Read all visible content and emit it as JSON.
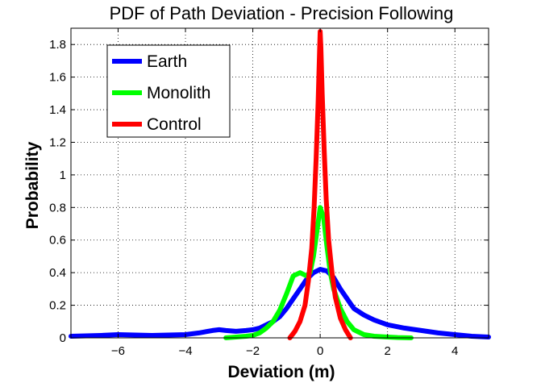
{
  "chart_data": {
    "type": "line",
    "title": "PDF of Path Deviation - Precision Following",
    "xlabel": "Deviation (m)",
    "ylabel": "Probability",
    "xlim": [
      -7.4,
      5.0
    ],
    "ylim": [
      0,
      1.9
    ],
    "xticks": [
      -6,
      -4,
      -2,
      0,
      2,
      4
    ],
    "xtick_labels": [
      "−6",
      "−4",
      "−2",
      "0",
      "2",
      "4"
    ],
    "yticks": [
      0,
      0.2,
      0.4,
      0.6,
      0.8,
      1.0,
      1.2,
      1.4,
      1.6,
      1.8
    ],
    "ytick_labels": [
      "0",
      "0.2",
      "0.4",
      "0.6",
      "0.8",
      "1",
      "1.2",
      "1.4",
      "1.6",
      "1.8"
    ],
    "grid": true,
    "legend_position": "top-left",
    "series": [
      {
        "name": "Earth",
        "color": "#0000ff",
        "x": [
          -7.4,
          -6.5,
          -6.0,
          -5.0,
          -4.0,
          -3.6,
          -3.2,
          -3.0,
          -2.8,
          -2.5,
          -2.2,
          -2.0,
          -1.8,
          -1.6,
          -1.4,
          -1.2,
          -1.0,
          -0.8,
          -0.6,
          -0.4,
          -0.2,
          0.0,
          0.2,
          0.4,
          0.6,
          0.8,
          1.0,
          1.3,
          1.6,
          2.0,
          2.5,
          3.0,
          3.5,
          4.0,
          4.5,
          5.0
        ],
        "y": [
          0.01,
          0.015,
          0.02,
          0.015,
          0.02,
          0.03,
          0.045,
          0.05,
          0.045,
          0.04,
          0.045,
          0.05,
          0.06,
          0.08,
          0.1,
          0.13,
          0.18,
          0.24,
          0.3,
          0.36,
          0.4,
          0.42,
          0.41,
          0.37,
          0.3,
          0.24,
          0.18,
          0.14,
          0.11,
          0.08,
          0.06,
          0.045,
          0.03,
          0.02,
          0.01,
          0.005
        ]
      },
      {
        "name": "Monolith",
        "color": "#00ff00",
        "x": [
          -2.8,
          -2.5,
          -2.2,
          -2.0,
          -1.8,
          -1.6,
          -1.4,
          -1.2,
          -1.0,
          -0.8,
          -0.6,
          -0.4,
          -0.3,
          -0.2,
          -0.1,
          0.0,
          0.1,
          0.2,
          0.3,
          0.4,
          0.6,
          0.8,
          1.0,
          1.3,
          1.6,
          2.0,
          2.3,
          2.7
        ],
        "y": [
          0.0,
          0.005,
          0.01,
          0.015,
          0.03,
          0.06,
          0.1,
          0.17,
          0.27,
          0.38,
          0.4,
          0.38,
          0.4,
          0.5,
          0.65,
          0.8,
          0.74,
          0.56,
          0.4,
          0.3,
          0.18,
          0.1,
          0.05,
          0.02,
          0.01,
          0.005,
          0.002,
          0.0
        ]
      },
      {
        "name": "Control",
        "color": "#ff0000",
        "x": [
          -0.9,
          -0.75,
          -0.6,
          -0.45,
          -0.35,
          -0.25,
          -0.18,
          -0.12,
          -0.06,
          -0.02,
          0.0,
          0.02,
          0.06,
          0.12,
          0.18,
          0.25,
          0.35,
          0.45,
          0.6,
          0.75,
          0.9
        ],
        "y": [
          0.0,
          0.04,
          0.1,
          0.2,
          0.35,
          0.55,
          0.8,
          1.1,
          1.45,
          1.75,
          1.88,
          1.78,
          1.5,
          1.15,
          0.85,
          0.6,
          0.4,
          0.25,
          0.12,
          0.05,
          0.0
        ]
      }
    ]
  }
}
